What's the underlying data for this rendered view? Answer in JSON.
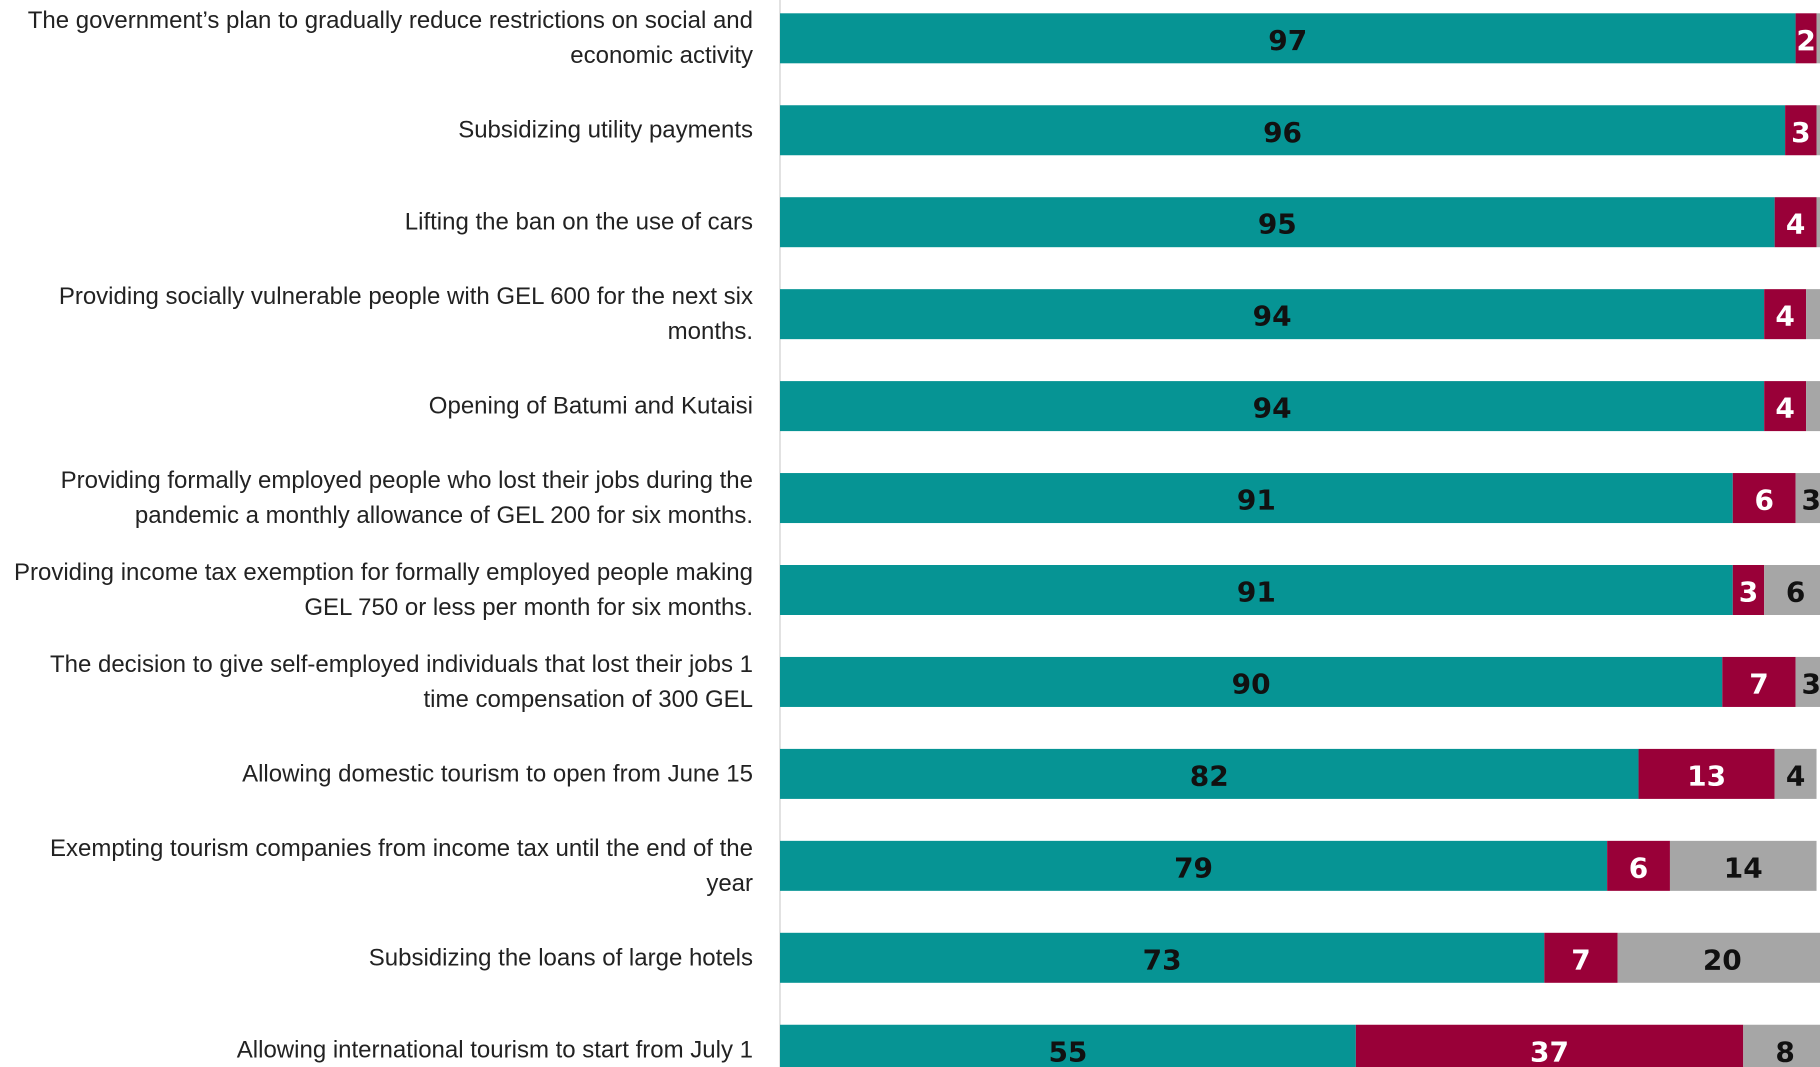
{
  "chart_data": {
    "type": "stacked-bar-horizontal",
    "categories": [
      "The government’s plan to gradually reduce restrictions on social and economic activity",
      "Subsidizing utility payments",
      "Lifting the ban on the use of cars",
      "Providing socially vulnerable people with GEL 600 for the next six months.",
      "Opening of Batumi and Kutaisi",
      "Providing formally employed people who lost their jobs during the pandemic a monthly allowance of GEL 200 for six months.",
      "Providing income tax exemption for formally employed people making GEL 750 or less per month for six months.",
      "The decision to give self-employed individuals that lost their jobs 1 time compensation of 300 GEL",
      "Allowing domestic tourism to open from June 15",
      "Exempting tourism companies from income tax until the end of the year",
      "Subsidizing the loans of large hotels",
      "Allowing international tourism to start from July 1"
    ],
    "series": [
      {
        "color": "#069494",
        "label_color": "#111111",
        "values": [
          97,
          96,
          95,
          94,
          94,
          91,
          91,
          90,
          82,
          79,
          73,
          55
        ]
      },
      {
        "color": "#990038",
        "label_color": "#ffffff",
        "values": [
          2,
          3,
          4,
          4,
          4,
          6,
          3,
          7,
          13,
          6,
          7,
          37
        ]
      },
      {
        "color": "#a6a6a6",
        "label_color": "#111111",
        "values": [
          1,
          1,
          1,
          2,
          2,
          3,
          6,
          3,
          4,
          14,
          20,
          8
        ],
        "value_labels": [
          null,
          null,
          null,
          null,
          null,
          "3",
          "6",
          "3",
          "4",
          "14",
          "20",
          "8"
        ]
      }
    ],
    "xlim": [
      0,
      100
    ]
  }
}
